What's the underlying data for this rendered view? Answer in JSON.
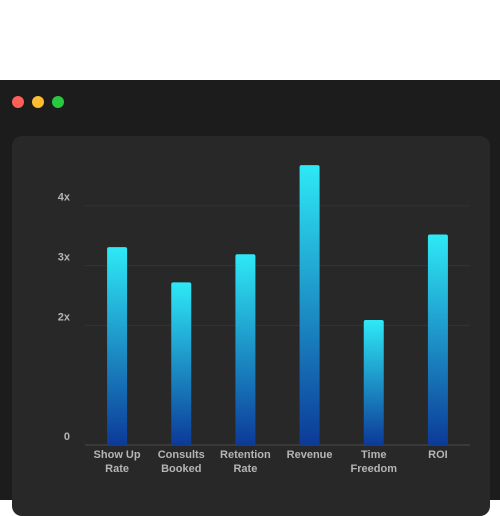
{
  "chart_data": {
    "type": "bar",
    "categories": [
      "Show Up Rate",
      "Consults Booked",
      "Retention Rate",
      "Revenue",
      "Time Freedom",
      "ROI"
    ],
    "values": [
      3.31,
      2.72,
      3.19,
      4.68,
      2.09,
      3.52
    ],
    "color_top": "#2ee9f6",
    "color_bottom": "#0c3a98",
    "ylim": [
      0,
      4.8
    ],
    "yticks": [
      {
        "value": 0,
        "label": "0"
      },
      {
        "value": 2,
        "label": "2x"
      },
      {
        "value": 3,
        "label": "3x"
      },
      {
        "value": 4,
        "label": "4x"
      }
    ],
    "grid": true
  }
}
